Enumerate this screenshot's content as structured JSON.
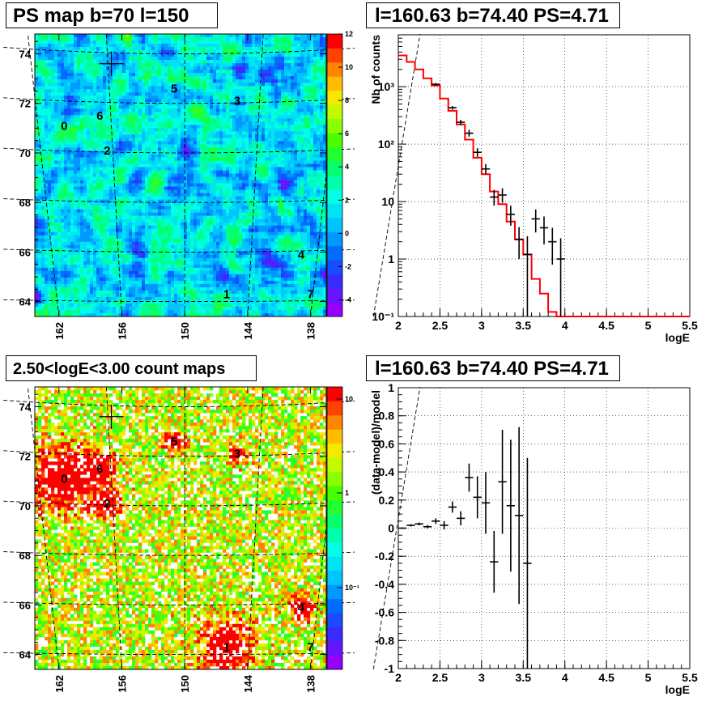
{
  "panels": {
    "psmap_title": "PS map b=70 l=150",
    "counts_title": "2.50<logE<3.00 count maps",
    "spectrum_title": "l=160.63 b=74.40 PS=4.71",
    "residual_title": "l=160.63 b=74.40 PS=4.71"
  },
  "colors": {
    "model_line": "#ff0000",
    "data_points": "#000000",
    "grid": "#000000"
  },
  "chart_data": [
    {
      "type": "heatmap",
      "name": "PS map",
      "x_ticks": [
        "162",
        "156",
        "150",
        "144",
        "138"
      ],
      "y_ticks": [
        "74",
        "72",
        "70",
        "68",
        "66",
        "64"
      ],
      "colorbar_ticks": [
        "12",
        "10",
        "8",
        "6",
        "4",
        "2",
        "0",
        "-2",
        "-4"
      ],
      "colorbar_range": [
        -5,
        12
      ],
      "crosshair": {
        "l": 157,
        "b": 73.6
      },
      "sources": [
        {
          "label": "0",
          "l": 161.5,
          "b": 71.1
        },
        {
          "label": "6",
          "l": 158.1,
          "b": 71.5
        },
        {
          "label": "2",
          "l": 157.4,
          "b": 70.1
        },
        {
          "label": "5",
          "l": 151.0,
          "b": 72.6
        },
        {
          "label": "3",
          "l": 145.0,
          "b": 72.1
        },
        {
          "label": "4",
          "l": 138.9,
          "b": 65.9
        },
        {
          "label": "1",
          "l": 146.0,
          "b": 64.3
        },
        {
          "label": "7",
          "l": 138.0,
          "b": 64.3
        }
      ]
    },
    {
      "type": "heatmap",
      "name": "count maps",
      "x_ticks": [
        "162",
        "156",
        "150",
        "144",
        "138"
      ],
      "y_ticks": [
        "74",
        "72",
        "70",
        "68",
        "66",
        "64"
      ],
      "colorbar_ticks": [
        "10",
        "1",
        "10⁻¹"
      ],
      "colorbar_scale": "log",
      "crosshair": {
        "l": 157,
        "b": 73.6
      },
      "sources": [
        {
          "label": "0",
          "l": 161.5,
          "b": 71.1
        },
        {
          "label": "6",
          "l": 158.1,
          "b": 71.5
        },
        {
          "label": "2",
          "l": 157.4,
          "b": 70.1
        },
        {
          "label": "5",
          "l": 151.0,
          "b": 72.6
        },
        {
          "label": "3",
          "l": 145.0,
          "b": 72.1
        },
        {
          "label": "4",
          "l": 138.9,
          "b": 65.9
        },
        {
          "label": "1",
          "l": 146.0,
          "b": 64.3
        },
        {
          "label": "7",
          "l": 138.0,
          "b": 64.3
        }
      ]
    },
    {
      "type": "line",
      "name": "spectrum",
      "xlabel": "logE",
      "ylabel": "Nb of counts",
      "xlim": [
        2,
        5.5
      ],
      "ylim": [
        0.1,
        8000
      ],
      "yscale": "log",
      "x_ticks": [
        "2",
        "2.5",
        "3",
        "3.5",
        "4",
        "4.5",
        "5",
        "5.5"
      ],
      "y_ticks": [
        "10⁻¹",
        "1",
        "10",
        "10²",
        "10³"
      ],
      "grid": true,
      "model_edges": [
        2.0,
        2.1,
        2.2,
        2.3,
        2.4,
        2.5,
        2.6,
        2.7,
        2.8,
        2.9,
        3.0,
        3.1,
        3.2,
        3.3,
        3.4,
        3.5,
        3.6,
        3.7,
        3.8,
        3.9,
        4.0
      ],
      "model_values": [
        3500,
        2700,
        2000,
        1400,
        1050,
        620,
        380,
        220,
        120,
        58,
        30,
        15,
        9,
        4.5,
        2.2,
        1.2,
        0.45,
        0.25,
        0.12,
        0.1
      ],
      "data_points": [
        {
          "x": 2.45,
          "y": 1100,
          "lo": 1040,
          "hi": 1160
        },
        {
          "x": 2.65,
          "y": 430,
          "lo": 400,
          "hi": 460
        },
        {
          "x": 2.75,
          "y": 240,
          "lo": 215,
          "hi": 265
        },
        {
          "x": 2.85,
          "y": 155,
          "lo": 135,
          "hi": 178
        },
        {
          "x": 2.95,
          "y": 72,
          "lo": 60,
          "hi": 85
        },
        {
          "x": 3.05,
          "y": 37,
          "lo": 30,
          "hi": 45
        },
        {
          "x": 3.15,
          "y": 12,
          "lo": 8.5,
          "hi": 16
        },
        {
          "x": 3.25,
          "y": 13,
          "lo": 9.5,
          "hi": 17
        },
        {
          "x": 3.35,
          "y": 6,
          "lo": 3.8,
          "hi": 8.5
        },
        {
          "x": 3.45,
          "y": 2.2,
          "lo": 1.0,
          "hi": 3.6
        },
        {
          "x": 3.55,
          "y": 1.2,
          "lo": 0.1,
          "hi": 2.5
        },
        {
          "x": 3.65,
          "y": 5,
          "lo": 2.9,
          "hi": 7.3
        },
        {
          "x": 3.75,
          "y": 3.5,
          "lo": 1.8,
          "hi": 5.5
        },
        {
          "x": 3.85,
          "y": 2,
          "lo": 0.8,
          "hi": 3.5
        },
        {
          "x": 3.95,
          "y": 1,
          "lo": 0.1,
          "hi": 2.3
        }
      ]
    },
    {
      "type": "scatter",
      "name": "residuals",
      "xlabel": "logE",
      "ylabel": "(data-model)/model",
      "xlim": [
        2,
        5.5
      ],
      "ylim": [
        -1,
        1
      ],
      "x_ticks": [
        "2",
        "2.5",
        "3",
        "3.5",
        "4",
        "4.5",
        "5",
        "5.5"
      ],
      "y_ticks": [
        "-1",
        "-0.8",
        "-0.6",
        "-0.4",
        "-0.2",
        "0",
        "0.2",
        "0.4",
        "0.6",
        "0.8",
        "1"
      ],
      "grid": true,
      "data_points": [
        {
          "x": 2.05,
          "y": 0.0,
          "err": 0.005
        },
        {
          "x": 2.15,
          "y": 0.02,
          "err": 0.008
        },
        {
          "x": 2.25,
          "y": 0.03,
          "err": 0.01
        },
        {
          "x": 2.35,
          "y": 0.01,
          "err": 0.012
        },
        {
          "x": 2.45,
          "y": 0.05,
          "err": 0.02
        },
        {
          "x": 2.55,
          "y": 0.02,
          "err": 0.03
        },
        {
          "x": 2.65,
          "y": 0.15,
          "err": 0.04
        },
        {
          "x": 2.75,
          "y": 0.07,
          "err": 0.05
        },
        {
          "x": 2.85,
          "y": 0.36,
          "err": 0.1
        },
        {
          "x": 2.95,
          "y": 0.22,
          "err": 0.15
        },
        {
          "x": 3.05,
          "y": 0.18,
          "err": 0.22
        },
        {
          "x": 3.15,
          "y": -0.24,
          "err": 0.22
        },
        {
          "x": 3.25,
          "y": 0.33,
          "err": 0.37
        },
        {
          "x": 3.35,
          "y": 0.16,
          "err": 0.47
        },
        {
          "x": 3.45,
          "y": 0.09,
          "err": 0.63
        },
        {
          "x": 3.55,
          "y": -0.25,
          "err": 0.75
        }
      ]
    }
  ]
}
